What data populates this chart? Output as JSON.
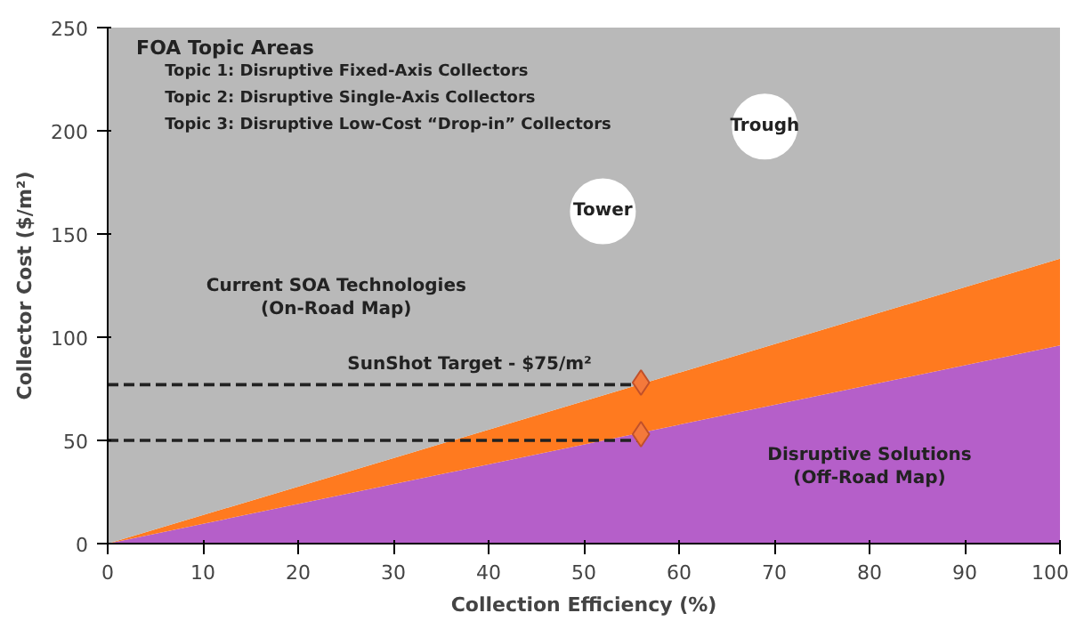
{
  "chart_data": {
    "type": "area",
    "stacked": true,
    "xlabel": "Collection Efficiency (%)",
    "ylabel": "Collector Cost ($/m²)",
    "x": [
      0,
      100
    ],
    "xlim": [
      0,
      100
    ],
    "ylim": [
      0,
      250
    ],
    "xticks": [
      0,
      10,
      20,
      30,
      40,
      50,
      60,
      70,
      80,
      90,
      100
    ],
    "yticks": [
      0,
      50,
      100,
      150,
      200,
      250
    ],
    "series": [
      {
        "color": "#b55fc9",
        "values": [
          0,
          96
        ]
      },
      {
        "color": "#ff7a1f",
        "values": [
          0,
          42
        ]
      },
      {
        "color": "#b9b9b9",
        "values": [
          250,
          112
        ]
      },
      {
        "type": "line",
        "color": "#222222",
        "line_style": "dashed",
        "x": [
          0,
          56
        ],
        "values": [
          77,
          77
        ]
      },
      {
        "type": "line",
        "color": "#222222",
        "line_style": "dashed",
        "x": [
          0,
          56
        ],
        "values": [
          50,
          50
        ]
      },
      {
        "type": "scatter",
        "marker": "diamond",
        "color": "#f4793b",
        "x": [
          56,
          56
        ],
        "values": [
          78,
          53
        ]
      },
      {
        "type": "scatter",
        "marker": "circle",
        "color": "#ffffff",
        "x": [
          52,
          69
        ],
        "values": [
          161,
          202
        ]
      }
    ],
    "annotations": [
      "FOA Topic Areas",
      "Topic 1: Disruptive  Fixed-Axis Collectors",
      "Topic 2: Disruptive  Single-Axis Collectors",
      "Topic 3: Disruptive  Low-Cost “Drop-in” Collectors",
      {
        "text": "Tower",
        "x": 52,
        "y": 161
      },
      {
        "text": "Trough",
        "x": 69,
        "y": 202
      },
      "Current SOA Technologies\n(On-Road Map)",
      "SunShot Target - $75/m²",
      "Disruptive Solutions\n(Off-Road Map)"
    ]
  }
}
